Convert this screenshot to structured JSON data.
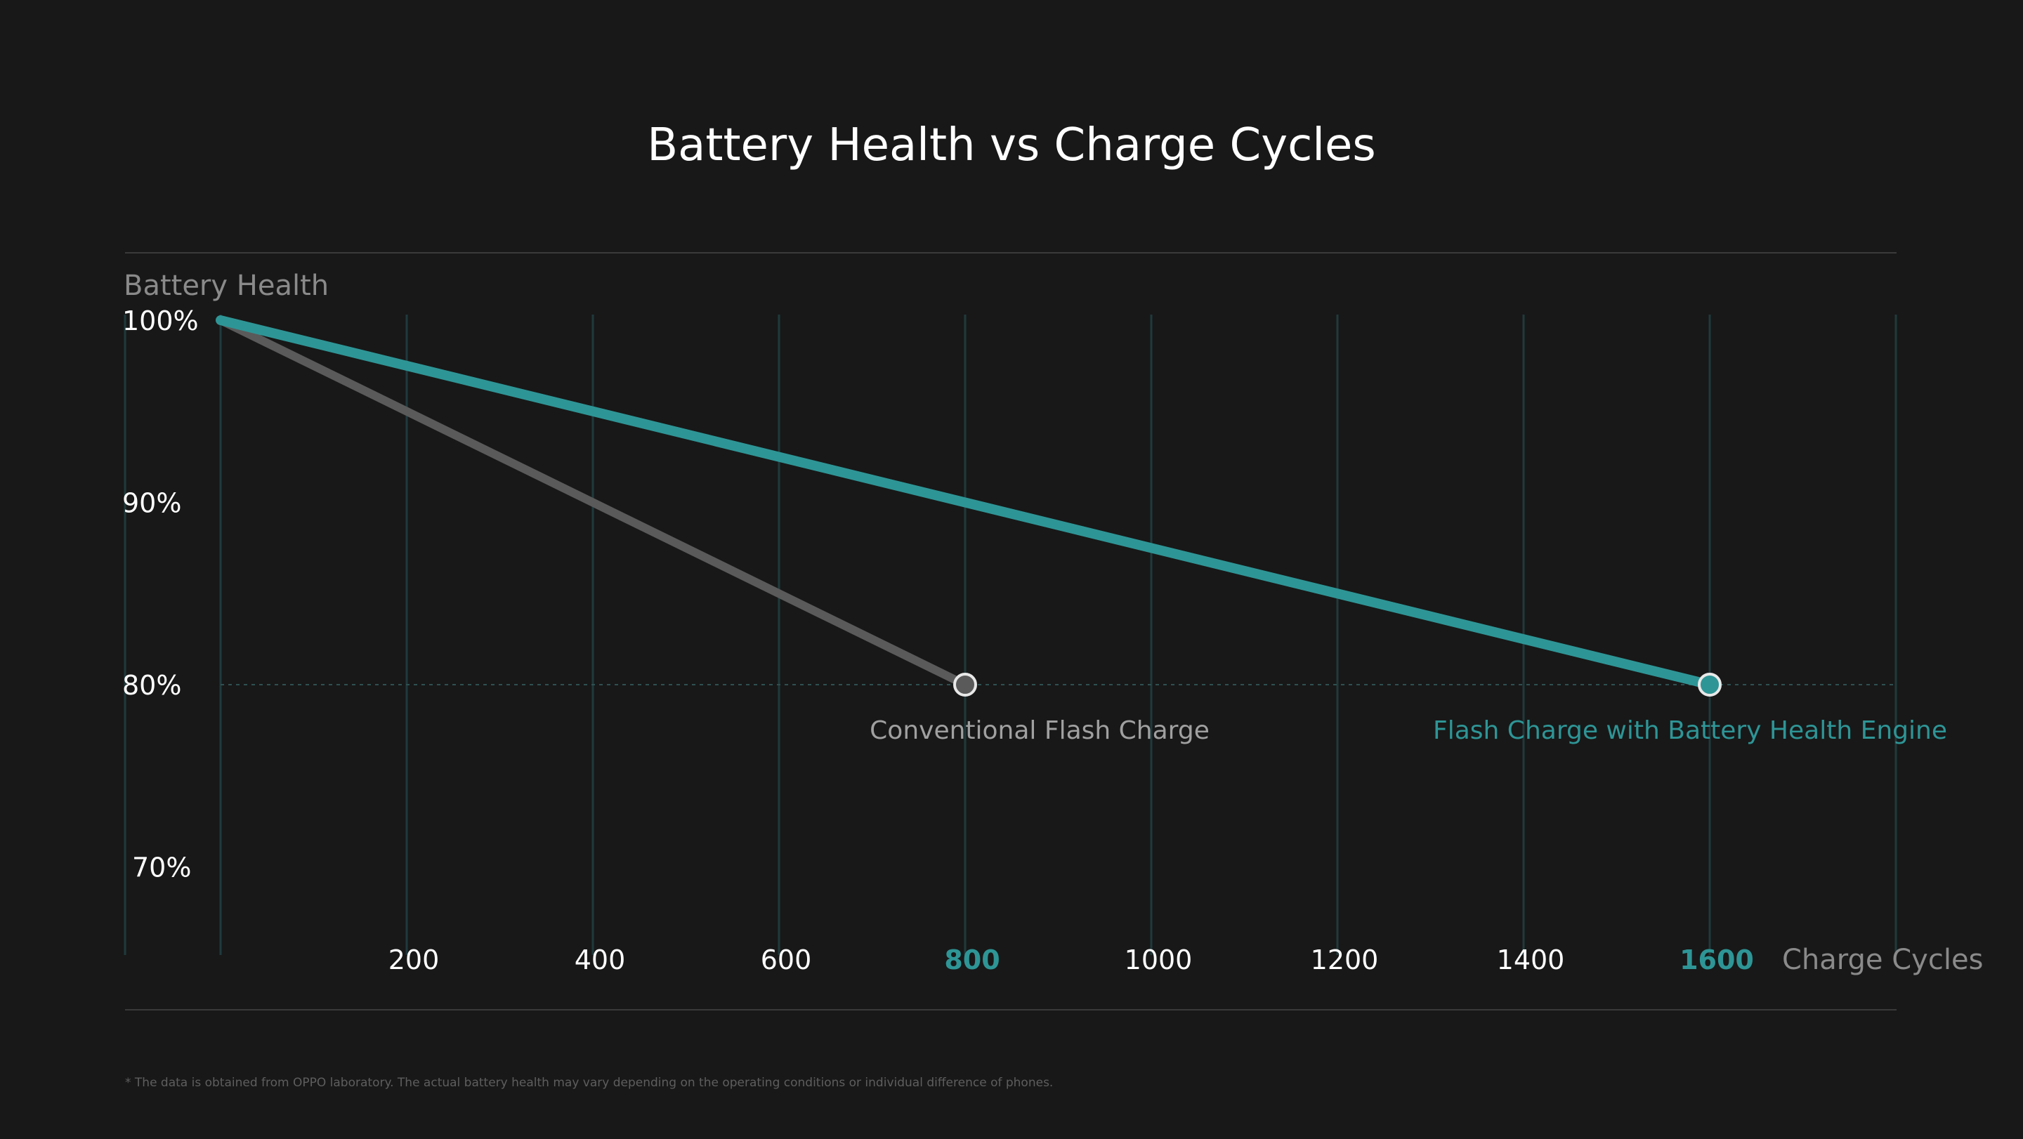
{
  "chart_data": {
    "type": "line",
    "title": "Battery Health vs Charge Cycles",
    "ylabel": "Battery Health",
    "xlabel": "Charge Cycles",
    "xlim": [
      0,
      1900
    ],
    "ylim": [
      66,
      100
    ],
    "x_ticks": [
      {
        "value": 200,
        "label": "200",
        "highlight": false
      },
      {
        "value": 400,
        "label": "400",
        "highlight": false
      },
      {
        "value": 600,
        "label": "600",
        "highlight": false
      },
      {
        "value": 800,
        "label": "800",
        "highlight": true
      },
      {
        "value": 1000,
        "label": "1000",
        "highlight": false
      },
      {
        "value": 1200,
        "label": "1200",
        "highlight": false
      },
      {
        "value": 1400,
        "label": "1400",
        "highlight": false
      },
      {
        "value": 1600,
        "label": "1600",
        "highlight": true
      }
    ],
    "y_ticks": [
      {
        "value": 100,
        "label": "100%"
      },
      {
        "value": 90,
        "label": "90%"
      },
      {
        "value": 80,
        "label": "80%"
      },
      {
        "value": 70,
        "label": "70%"
      }
    ],
    "grid": true,
    "reference_line": 80,
    "series": [
      {
        "name": "Conventional Flash Charge",
        "color": "#5a5a5a",
        "label_color": "#a0a0a0",
        "x": [
          0,
          800
        ],
        "y": [
          100,
          80
        ]
      },
      {
        "name": "Flash Charge with Battery Health Engine",
        "color": "#2e9596",
        "label_color": "#2e9596",
        "x": [
          0,
          1600
        ],
        "y": [
          100,
          80
        ]
      }
    ],
    "footnote": "* The data is obtained from OPPO laboratory. The actual battery health may vary depending on the operating conditions or individual difference of phones."
  },
  "colors": {
    "background": "#181818",
    "accent": "#2e9596",
    "grid": "#1f3a3c"
  }
}
